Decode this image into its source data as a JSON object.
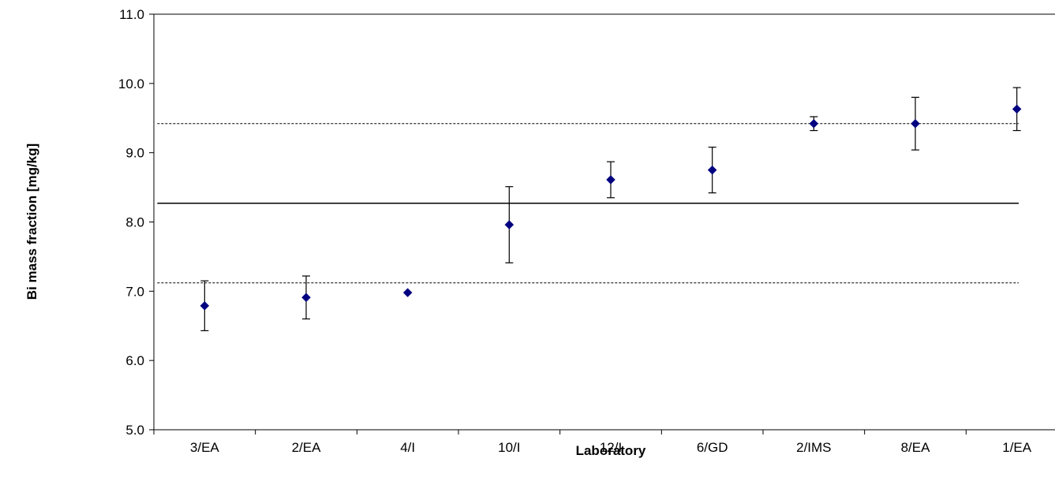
{
  "chart_data": {
    "type": "scatter",
    "title": "",
    "xlabel": "Laboratory",
    "ylabel": "Bi mass fraction  [mg/kg]",
    "ylim": [
      5.0,
      11.0
    ],
    "yticks": [
      "5.0",
      "6.0",
      "7.0",
      "8.0",
      "9.0",
      "10.0",
      "11.0"
    ],
    "categories": [
      "3/EA",
      "2/EA",
      "4/I",
      "10/I",
      "12/I",
      "6/GD",
      "2/IMS",
      "8/EA",
      "1/EA"
    ],
    "series": [
      {
        "values": [
          6.79,
          6.91,
          6.98,
          7.96,
          8.61,
          8.75,
          9.42,
          9.42,
          9.63
        ],
        "errors": [
          0.36,
          0.31,
          0.0,
          0.55,
          0.26,
          0.33,
          0.1,
          0.38,
          0.31
        ]
      }
    ],
    "reference_lines": [
      {
        "value": 8.27,
        "style": "solid"
      },
      {
        "value": 9.42,
        "style": "dashed"
      },
      {
        "value": 7.12,
        "style": "dashed"
      }
    ],
    "grid": false,
    "legend": "none",
    "marker_color": "#000080",
    "line_color": "#000000"
  }
}
